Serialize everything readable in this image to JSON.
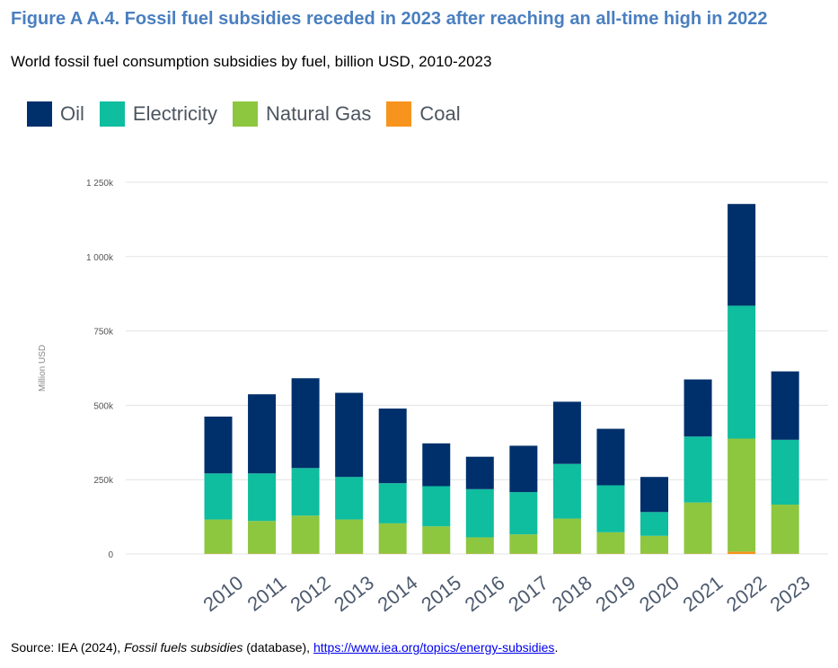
{
  "title": "Figure A A.4. Fossil fuel subsidies receded in 2023 after reaching an all-time high in 2022",
  "subtitle": "World fossil fuel consumption subsidies by fuel, billion USD, 2010-2023",
  "colors": {
    "Oil": "#00306b",
    "Electricity": "#0fbd9f",
    "Natural Gas": "#8dc63f",
    "Coal": "#f7941d",
    "title": "#4a7fc0",
    "grid": "#e3e3e3"
  },
  "chart_data": {
    "type": "bar",
    "stacked": true,
    "categories": [
      "2010",
      "2011",
      "2012",
      "2013",
      "2014",
      "2015",
      "2016",
      "2017",
      "2018",
      "2019",
      "2020",
      "2021",
      "2022",
      "2023"
    ],
    "series": [
      {
        "name": "Coal",
        "values": [
          1,
          1,
          1,
          1,
          1,
          1,
          1,
          1,
          1,
          1,
          1,
          1,
          8,
          1
        ]
      },
      {
        "name": "Natural Gas",
        "values": [
          115,
          110,
          128,
          115,
          102,
          92,
          55,
          65,
          118,
          72,
          60,
          172,
          380,
          165
        ]
      },
      {
        "name": "Electricity",
        "values": [
          155,
          160,
          160,
          143,
          135,
          135,
          162,
          142,
          184,
          158,
          80,
          222,
          447,
          218
        ]
      },
      {
        "name": "Oil",
        "values": [
          191,
          266,
          302,
          283,
          251,
          144,
          109,
          156,
          209,
          190,
          118,
          192,
          342,
          230
        ]
      }
    ],
    "legend_order": [
      "Oil",
      "Electricity",
      "Natural Gas",
      "Coal"
    ],
    "ylabel": "Million USD",
    "ylim": [
      0,
      1250
    ],
    "yticks": [
      0,
      250,
      500,
      750,
      1000,
      1250
    ],
    "ytick_labels": [
      "0",
      "250k",
      "500k",
      "750k",
      "1 000k",
      "1 250k"
    ],
    "grid": true,
    "legend_position": "top-left"
  },
  "source": {
    "prefix": "Source: IEA (2024), ",
    "italic": "Fossil fuels subsidies",
    "middle": " (database), ",
    "link": "https://www.iea.org/topics/energy-subsidies",
    "suffix": "."
  }
}
